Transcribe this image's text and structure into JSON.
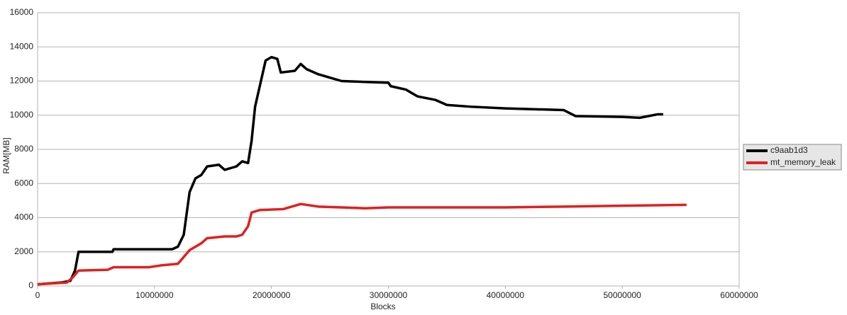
{
  "chart_data": {
    "type": "line",
    "x_label": "Blocks",
    "y_label": "RAM[MB]",
    "xlim": [
      0,
      60000000
    ],
    "xticks": [
      0,
      10000000,
      20000000,
      30000000,
      40000000,
      50000000,
      60000000
    ],
    "ylim": [
      0,
      16000
    ],
    "yticks": [
      0,
      2000,
      4000,
      6000,
      8000,
      10000,
      12000,
      14000,
      16000
    ],
    "grid": true,
    "legend": "right",
    "series": [
      {
        "name": "c9aab1d3",
        "color": "#000000",
        "x": [
          0,
          1000000,
          2000000,
          2800000,
          3200000,
          3500000,
          4000000,
          6400000,
          6500000,
          9000000,
          11500000,
          12000000,
          12500000,
          13000000,
          13500000,
          14000000,
          14500000,
          15500000,
          16000000,
          17000000,
          17500000,
          18000000,
          18300000,
          18600000,
          19000000,
          19500000,
          20000000,
          20500000,
          20800000,
          22000000,
          22500000,
          23000000,
          24000000,
          25000000,
          26000000,
          30000000,
          30200000,
          31500000,
          32500000,
          34000000,
          35000000,
          37000000,
          40000000,
          45000000,
          46000000,
          50000000,
          51500000,
          53000000,
          53500000
        ],
        "values": [
          100,
          150,
          200,
          300,
          900,
          2000,
          2000,
          2000,
          2150,
          2150,
          2150,
          2300,
          3000,
          5500,
          6300,
          6500,
          7000,
          7100,
          6800,
          7000,
          7300,
          7200,
          8500,
          10500,
          11700,
          13200,
          13400,
          13300,
          12500,
          12600,
          13000,
          12700,
          12400,
          12200,
          12000,
          11900,
          11700,
          11500,
          11100,
          10900,
          10600,
          10500,
          10400,
          10300,
          9950,
          9900,
          9850,
          10050,
          10050
        ]
      },
      {
        "name": "mt_memory_leak",
        "color": "#e02020",
        "x": [
          0,
          2500000,
          3000000,
          3500000,
          6000000,
          6500000,
          9500000,
          10500000,
          12000000,
          12500000,
          13000000,
          14000000,
          14500000,
          16000000,
          17000000,
          17500000,
          18000000,
          18300000,
          19000000,
          21000000,
          22500000,
          24000000,
          26000000,
          28000000,
          30000000,
          35000000,
          40000000,
          45000000,
          50000000,
          55500000
        ],
        "values": [
          100,
          200,
          500,
          900,
          950,
          1100,
          1100,
          1200,
          1300,
          1700,
          2100,
          2500,
          2800,
          2900,
          2900,
          3000,
          3500,
          4300,
          4450,
          4500,
          4800,
          4650,
          4600,
          4550,
          4600,
          4600,
          4600,
          4650,
          4700,
          4750
        ]
      }
    ]
  }
}
